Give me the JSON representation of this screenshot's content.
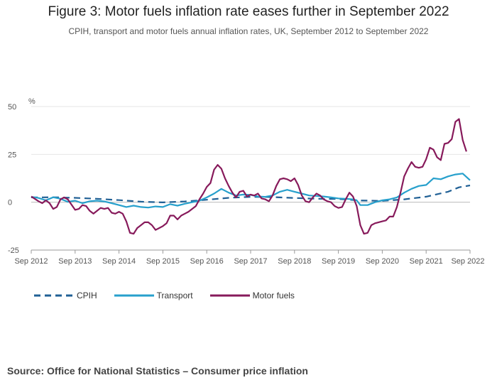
{
  "title": "Figure 3: Motor fuels inflation rate eases further in September 2022",
  "subtitle": "CPIH, transport and motor fuels annual inflation rates, UK, September 2012 to September 2022",
  "source": "Source: Office for National Statistics – Consumer price inflation",
  "chart_data": {
    "type": "line",
    "title": "Figure 3: Motor fuels inflation rate eases further in September 2022",
    "ylabel": "%",
    "xlabel": "",
    "ylim": [
      -25,
      50
    ],
    "yticks": [
      50,
      25,
      0,
      -25
    ],
    "xlim": [
      0,
      120
    ],
    "xticks": [
      {
        "pos": 0,
        "label": "Sep 2012"
      },
      {
        "pos": 12,
        "label": "Sep 2013"
      },
      {
        "pos": 24,
        "label": "Sep 2014"
      },
      {
        "pos": 36,
        "label": "Sep 2015"
      },
      {
        "pos": 48,
        "label": "Sep 2016"
      },
      {
        "pos": 60,
        "label": "Sep 2017"
      },
      {
        "pos": 72,
        "label": "Sep 2018"
      },
      {
        "pos": 84,
        "label": "Sep 2019"
      },
      {
        "pos": 96,
        "label": "Sep 2020"
      },
      {
        "pos": 108,
        "label": "Sep 2021"
      },
      {
        "pos": 120,
        "label": "Sep 2022"
      }
    ],
    "series": [
      {
        "name": "CPIH",
        "color": "#206095",
        "dash": "9,6",
        "points": [
          [
            0,
            2.5
          ],
          [
            6,
            2.6
          ],
          [
            12,
            2.3
          ],
          [
            18,
            1.8
          ],
          [
            24,
            1.1
          ],
          [
            30,
            0.3
          ],
          [
            36,
            -0.1
          ],
          [
            42,
            0.4
          ],
          [
            48,
            1.3
          ],
          [
            54,
            2.3
          ],
          [
            60,
            2.8
          ],
          [
            66,
            2.7
          ],
          [
            72,
            2.2
          ],
          [
            78,
            1.8
          ],
          [
            84,
            1.7
          ],
          [
            90,
            0.9
          ],
          [
            96,
            0.7
          ],
          [
            102,
            1.5
          ],
          [
            108,
            2.9
          ],
          [
            114,
            5.5
          ],
          [
            117,
            7.8
          ],
          [
            120,
            8.8
          ]
        ]
      },
      {
        "name": "Transport",
        "color": "#27a0cc",
        "dash": "",
        "points": [
          [
            0,
            2.8
          ],
          [
            2,
            2.2
          ],
          [
            4,
            1.0
          ],
          [
            6,
            2.6
          ],
          [
            8,
            1.8
          ],
          [
            10,
            0.2
          ],
          [
            12,
            0.8
          ],
          [
            14,
            -0.5
          ],
          [
            16,
            0.5
          ],
          [
            18,
            0.8
          ],
          [
            20,
            0.4
          ],
          [
            22,
            -0.5
          ],
          [
            24,
            -1.5
          ],
          [
            26,
            -2.5
          ],
          [
            28,
            -1.8
          ],
          [
            30,
            -2.5
          ],
          [
            32,
            -2.8
          ],
          [
            34,
            -2.2
          ],
          [
            36,
            -2.5
          ],
          [
            38,
            -1.0
          ],
          [
            40,
            -1.8
          ],
          [
            42,
            -0.8
          ],
          [
            44,
            0.0
          ],
          [
            46,
            0.8
          ],
          [
            48,
            2.5
          ],
          [
            50,
            4.5
          ],
          [
            52,
            7.0
          ],
          [
            54,
            5.0
          ],
          [
            56,
            3.5
          ],
          [
            58,
            4.0
          ],
          [
            60,
            3.8
          ],
          [
            62,
            3.0
          ],
          [
            64,
            2.8
          ],
          [
            66,
            3.5
          ],
          [
            68,
            5.5
          ],
          [
            70,
            6.5
          ],
          [
            72,
            5.5
          ],
          [
            74,
            4.5
          ],
          [
            76,
            3.5
          ],
          [
            78,
            3.3
          ],
          [
            80,
            3.0
          ],
          [
            82,
            2.5
          ],
          [
            84,
            2.0
          ],
          [
            86,
            1.8
          ],
          [
            88,
            1.5
          ],
          [
            89,
            1.0
          ],
          [
            90,
            -1.5
          ],
          [
            92,
            -1.5
          ],
          [
            94,
            0.0
          ],
          [
            96,
            1.0
          ],
          [
            98,
            1.5
          ],
          [
            100,
            2.5
          ],
          [
            102,
            5.0
          ],
          [
            104,
            7.0
          ],
          [
            106,
            8.5
          ],
          [
            108,
            9.0
          ],
          [
            110,
            12.5
          ],
          [
            112,
            12.0
          ],
          [
            114,
            13.5
          ],
          [
            116,
            14.5
          ],
          [
            118,
            15.0
          ],
          [
            120,
            11.5
          ]
        ]
      },
      {
        "name": "Motor fuels",
        "color": "#871a5b",
        "dash": "",
        "points": [
          [
            0,
            3.0
          ],
          [
            2,
            0.5
          ],
          [
            3,
            -0.5
          ],
          [
            4,
            1.0
          ],
          [
            5,
            -0.5
          ],
          [
            6,
            -3.5
          ],
          [
            7,
            -2.5
          ],
          [
            8,
            1.5
          ],
          [
            9,
            2.5
          ],
          [
            10,
            1.5
          ],
          [
            12,
            -4.0
          ],
          [
            13,
            -3.5
          ],
          [
            14,
            -1.5
          ],
          [
            15,
            -2.0
          ],
          [
            16,
            -4.5
          ],
          [
            17,
            -6.0
          ],
          [
            18,
            -4.5
          ],
          [
            19,
            -3.0
          ],
          [
            20,
            -3.5
          ],
          [
            21,
            -3.0
          ],
          [
            22,
            -5.5
          ],
          [
            23,
            -6.0
          ],
          [
            24,
            -5.0
          ],
          [
            25,
            -6.0
          ],
          [
            26,
            -10.0
          ],
          [
            27,
            -16.0
          ],
          [
            28,
            -16.5
          ],
          [
            29,
            -13.5
          ],
          [
            30,
            -12.0
          ],
          [
            31,
            -10.5
          ],
          [
            32,
            -10.5
          ],
          [
            33,
            -12.0
          ],
          [
            34,
            -14.5
          ],
          [
            35,
            -13.5
          ],
          [
            36,
            -12.5
          ],
          [
            37,
            -11.0
          ],
          [
            38,
            -7.0
          ],
          [
            39,
            -7.0
          ],
          [
            40,
            -9.0
          ],
          [
            41,
            -7.0
          ],
          [
            42,
            -6.0
          ],
          [
            43,
            -5.0
          ],
          [
            44,
            -3.5
          ],
          [
            45,
            -2.0
          ],
          [
            46,
            1.5
          ],
          [
            47,
            4.5
          ],
          [
            48,
            8.0
          ],
          [
            49,
            10.0
          ],
          [
            50,
            17.0
          ],
          [
            51,
            19.5
          ],
          [
            52,
            17.5
          ],
          [
            53,
            12.5
          ],
          [
            54,
            8.5
          ],
          [
            55,
            5.0
          ],
          [
            56,
            2.5
          ],
          [
            57,
            5.5
          ],
          [
            58,
            6.0
          ],
          [
            59,
            3.0
          ],
          [
            60,
            4.0
          ],
          [
            61,
            3.5
          ],
          [
            62,
            4.5
          ],
          [
            63,
            2.0
          ],
          [
            64,
            1.5
          ],
          [
            65,
            0.5
          ],
          [
            66,
            3.5
          ],
          [
            67,
            8.5
          ],
          [
            68,
            12.0
          ],
          [
            69,
            12.5
          ],
          [
            70,
            12.0
          ],
          [
            71,
            11.0
          ],
          [
            72,
            12.5
          ],
          [
            73,
            9.0
          ],
          [
            74,
            3.5
          ],
          [
            75,
            0.5
          ],
          [
            76,
            0.0
          ],
          [
            77,
            2.5
          ],
          [
            78,
            4.5
          ],
          [
            79,
            3.5
          ],
          [
            80,
            1.5
          ],
          [
            81,
            0.5
          ],
          [
            82,
            0.0
          ],
          [
            83,
            -2.0
          ],
          [
            84,
            -3.0
          ],
          [
            85,
            -2.5
          ],
          [
            86,
            1.5
          ],
          [
            87,
            5.0
          ],
          [
            88,
            3.0
          ],
          [
            89,
            -2.0
          ],
          [
            90,
            -12.0
          ],
          [
            91,
            -16.5
          ],
          [
            92,
            -16.0
          ],
          [
            93,
            -12.0
          ],
          [
            94,
            -11.0
          ],
          [
            95,
            -10.5
          ],
          [
            96,
            -10.0
          ],
          [
            97,
            -9.5
          ],
          [
            98,
            -7.5
          ],
          [
            99,
            -7.5
          ],
          [
            100,
            -2.5
          ],
          [
            101,
            5.0
          ],
          [
            102,
            13.5
          ],
          [
            103,
            17.5
          ],
          [
            104,
            21.0
          ],
          [
            105,
            18.5
          ],
          [
            106,
            18.0
          ],
          [
            107,
            18.5
          ],
          [
            108,
            22.5
          ],
          [
            109,
            28.5
          ],
          [
            110,
            27.5
          ],
          [
            111,
            23.5
          ],
          [
            112,
            22.0
          ],
          [
            113,
            30.5
          ],
          [
            114,
            31.0
          ],
          [
            115,
            33.0
          ],
          [
            116,
            42.0
          ],
          [
            117,
            43.5
          ],
          [
            118,
            32.5
          ],
          [
            119,
            26.5
          ]
        ]
      }
    ],
    "legend": [
      "CPIH",
      "Transport",
      "Motor fuels"
    ],
    "legend_position": "bottom-left",
    "grid": true
  }
}
